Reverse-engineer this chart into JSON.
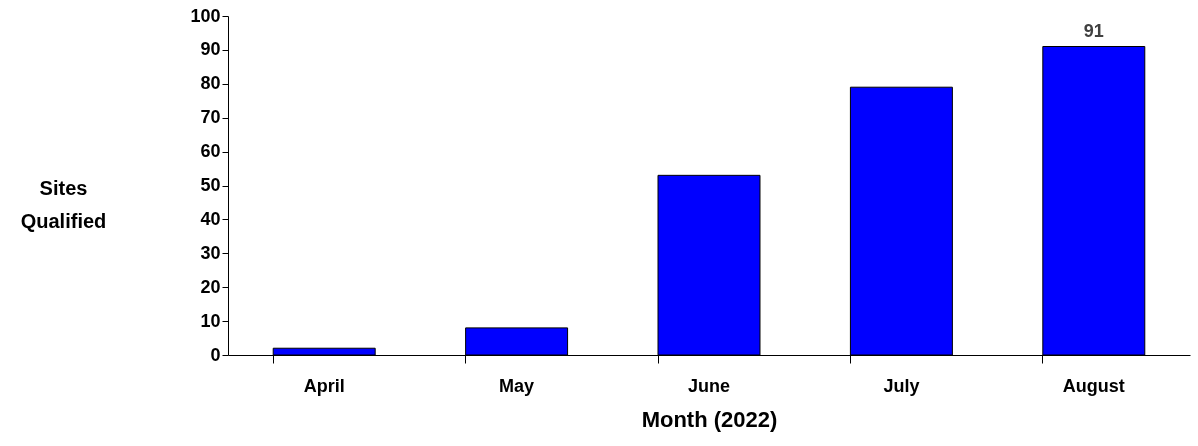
{
  "chart_data": {
    "type": "bar",
    "xlabel": "Month (2022)",
    "ylabel": "Sites Qualified",
    "categories": [
      "April",
      "May",
      "June",
      "July",
      "August"
    ],
    "series": [
      {
        "color": "#0000ff",
        "values": [
          2,
          8,
          53,
          79,
          91
        ],
        "value_labels": [
          null,
          null,
          null,
          null,
          "91"
        ]
      }
    ],
    "ylim": [
      0,
      100
    ],
    "yticks": [
      0,
      10,
      20,
      30,
      40,
      50,
      60,
      70,
      80,
      90,
      100
    ],
    "grid": false
  }
}
